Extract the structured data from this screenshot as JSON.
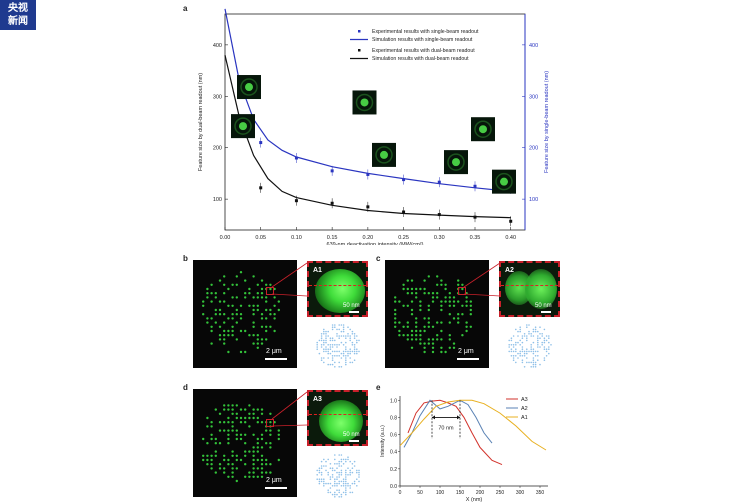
{
  "logo": {
    "line1": "央视",
    "line2": "新闻"
  },
  "panels": {
    "a": "a",
    "b": "b",
    "c": "c",
    "d": "d",
    "e": "e"
  },
  "colors": {
    "single": "#2a35c0",
    "dual": "#111111",
    "A3": "#d2322b",
    "A2": "#5a82b4",
    "A1": "#e8b020",
    "dot_green": "#33c23a",
    "map_blue": "#8fc0e8",
    "inset_border": "#c8202a"
  },
  "insets": {
    "b": {
      "label": "A1",
      "scalebar": "50 nm"
    },
    "c": {
      "label": "A2",
      "scalebar": "50 nm"
    },
    "d": {
      "label": "A3",
      "scalebar": "50 nm"
    }
  },
  "micro_scalebar": "2 μm",
  "chart_data": [
    {
      "type": "scatter",
      "title": "",
      "xlabel": "639-nm deactivation intensity (MW/cm²)",
      "ylabel": "Feature size by dual-beam readout (nm)",
      "ylabel_right": "Feature size by single-beam readout (nm)",
      "xlim": [
        0.0,
        0.42
      ],
      "ylim": [
        40,
        460
      ],
      "ylim_right": [
        40,
        460
      ],
      "x_ticks": [
        "0.00",
        "0.05",
        "0.10",
        "0.15",
        "0.20",
        "0.25",
        "0.30",
        "0.35",
        "0.40"
      ],
      "y_ticks": [
        "100",
        "200",
        "300",
        "400"
      ],
      "y_ticks_right": [
        "100",
        "200",
        "300",
        "400"
      ],
      "legend": {
        "placement": "top-right",
        "items": [
          "Experimental results with single-beam readout",
          "Simulation results with single-beam readout",
          "Experimental results with dual-beam readout",
          "Simulation results with dual-beam readout"
        ]
      },
      "series": [
        {
          "name": "Experimental results with single-beam readout",
          "kind": "points",
          "x": [
            0.05,
            0.1,
            0.15,
            0.2,
            0.25,
            0.3,
            0.35,
            0.4
          ],
          "y": [
            210,
            180,
            155,
            148,
            138,
            133,
            125,
            120
          ]
        },
        {
          "name": "Simulation results with single-beam readout",
          "kind": "line",
          "x": [
            0.0,
            0.02,
            0.04,
            0.06,
            0.08,
            0.1,
            0.15,
            0.2,
            0.25,
            0.3,
            0.35,
            0.4
          ],
          "y": [
            470,
            330,
            255,
            215,
            195,
            182,
            163,
            150,
            140,
            130,
            122,
            115
          ]
        },
        {
          "name": "Experimental results with dual-beam readout",
          "kind": "points",
          "x": [
            0.05,
            0.1,
            0.15,
            0.2,
            0.25,
            0.3,
            0.35,
            0.4
          ],
          "y": [
            122,
            97,
            92,
            85,
            75,
            70,
            65,
            57
          ]
        },
        {
          "name": "Simulation results with dual-beam readout",
          "kind": "line",
          "x": [
            0.0,
            0.02,
            0.04,
            0.06,
            0.08,
            0.1,
            0.15,
            0.2,
            0.25,
            0.3,
            0.35,
            0.4
          ],
          "y": [
            380,
            260,
            185,
            140,
            115,
            103,
            88,
            78,
            72,
            69,
            66,
            64
          ]
        }
      ]
    },
    {
      "type": "line",
      "title": "",
      "xlabel": "X (nm)",
      "ylabel": "Intensity (a.u.)",
      "xlim": [
        0,
        370
      ],
      "ylim": [
        0,
        1.05
      ],
      "x_ticks": [
        "0",
        "50",
        "100",
        "150",
        "200",
        "250",
        "300",
        "350"
      ],
      "y_ticks": [
        "0.0",
        "0.2",
        "0.4",
        "0.6",
        "0.8",
        "1.0"
      ],
      "annotation": "70 nm",
      "legend": {
        "placement": "top-right",
        "items": [
          "A3",
          "A2",
          "A1"
        ]
      },
      "series": [
        {
          "name": "A3",
          "x": [
            20,
            40,
            60,
            80,
            100,
            120,
            140,
            160,
            180,
            200,
            230,
            255
          ],
          "y": [
            0.62,
            0.85,
            0.97,
            0.99,
            1.0,
            0.97,
            0.93,
            0.8,
            0.62,
            0.45,
            0.3,
            0.25
          ]
        },
        {
          "name": "A2",
          "x": [
            10,
            30,
            50,
            75,
            100,
            120,
            150,
            170,
            190,
            210,
            230
          ],
          "y": [
            0.45,
            0.62,
            0.82,
            1.0,
            0.9,
            0.93,
            1.0,
            0.95,
            0.8,
            0.62,
            0.5
          ]
        },
        {
          "name": "A1",
          "x": [
            0,
            30,
            60,
            90,
            120,
            150,
            180,
            210,
            250,
            290,
            330,
            365
          ],
          "y": [
            0.47,
            0.62,
            0.78,
            0.93,
            0.98,
            1.0,
            1.0,
            0.96,
            0.85,
            0.7,
            0.52,
            0.42
          ]
        }
      ]
    }
  ]
}
